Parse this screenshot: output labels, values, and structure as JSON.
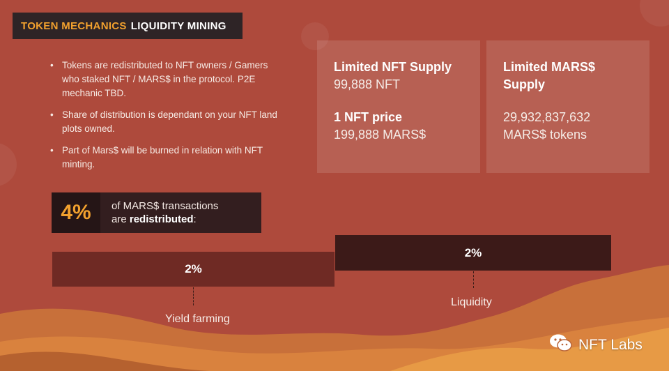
{
  "header": {
    "accent": "TOKEN MECHANICS",
    "title": "LIQUIDITY MINING"
  },
  "bullets": [
    "Tokens are redistributed to NFT owners / Gamers who staked NFT / MARS$ in the protocol. P2E mechanic TBD.",
    "Share of distribution is dependant on your NFT land plots owned.",
    "Part of Mars$ will be burned in relation with NFT minting."
  ],
  "card_nft": {
    "heading": "Limited NFT Supply",
    "value": "99,888 NFT",
    "heading2": "1 NFT price",
    "value2": "199,888 MARS$"
  },
  "card_mars": {
    "heading_line1": "Limited MARS$",
    "heading_line2": "Supply",
    "value_line1": "29,932,837,632",
    "value_line2": "MARS$ tokens"
  },
  "stat": {
    "percent": "4%",
    "line1": "of MARS$ transactions",
    "line2_prefix": "are ",
    "line2_bold": "redistributed",
    "line2_suffix": ":"
  },
  "distribution": [
    {
      "percent": "2%",
      "label": "Yield farming"
    },
    {
      "percent": "2%",
      "label": "Liquidity"
    }
  ],
  "watermark": {
    "text": "NFT Labs",
    "icon": "wechat-icon"
  },
  "colors": {
    "background": "#ae4a3c",
    "accent": "#f2a12e",
    "dark_box": "#2e2426",
    "bar_left": "#6f2a24",
    "bar_right": "#3c1a18",
    "dune": "#d9823e"
  }
}
